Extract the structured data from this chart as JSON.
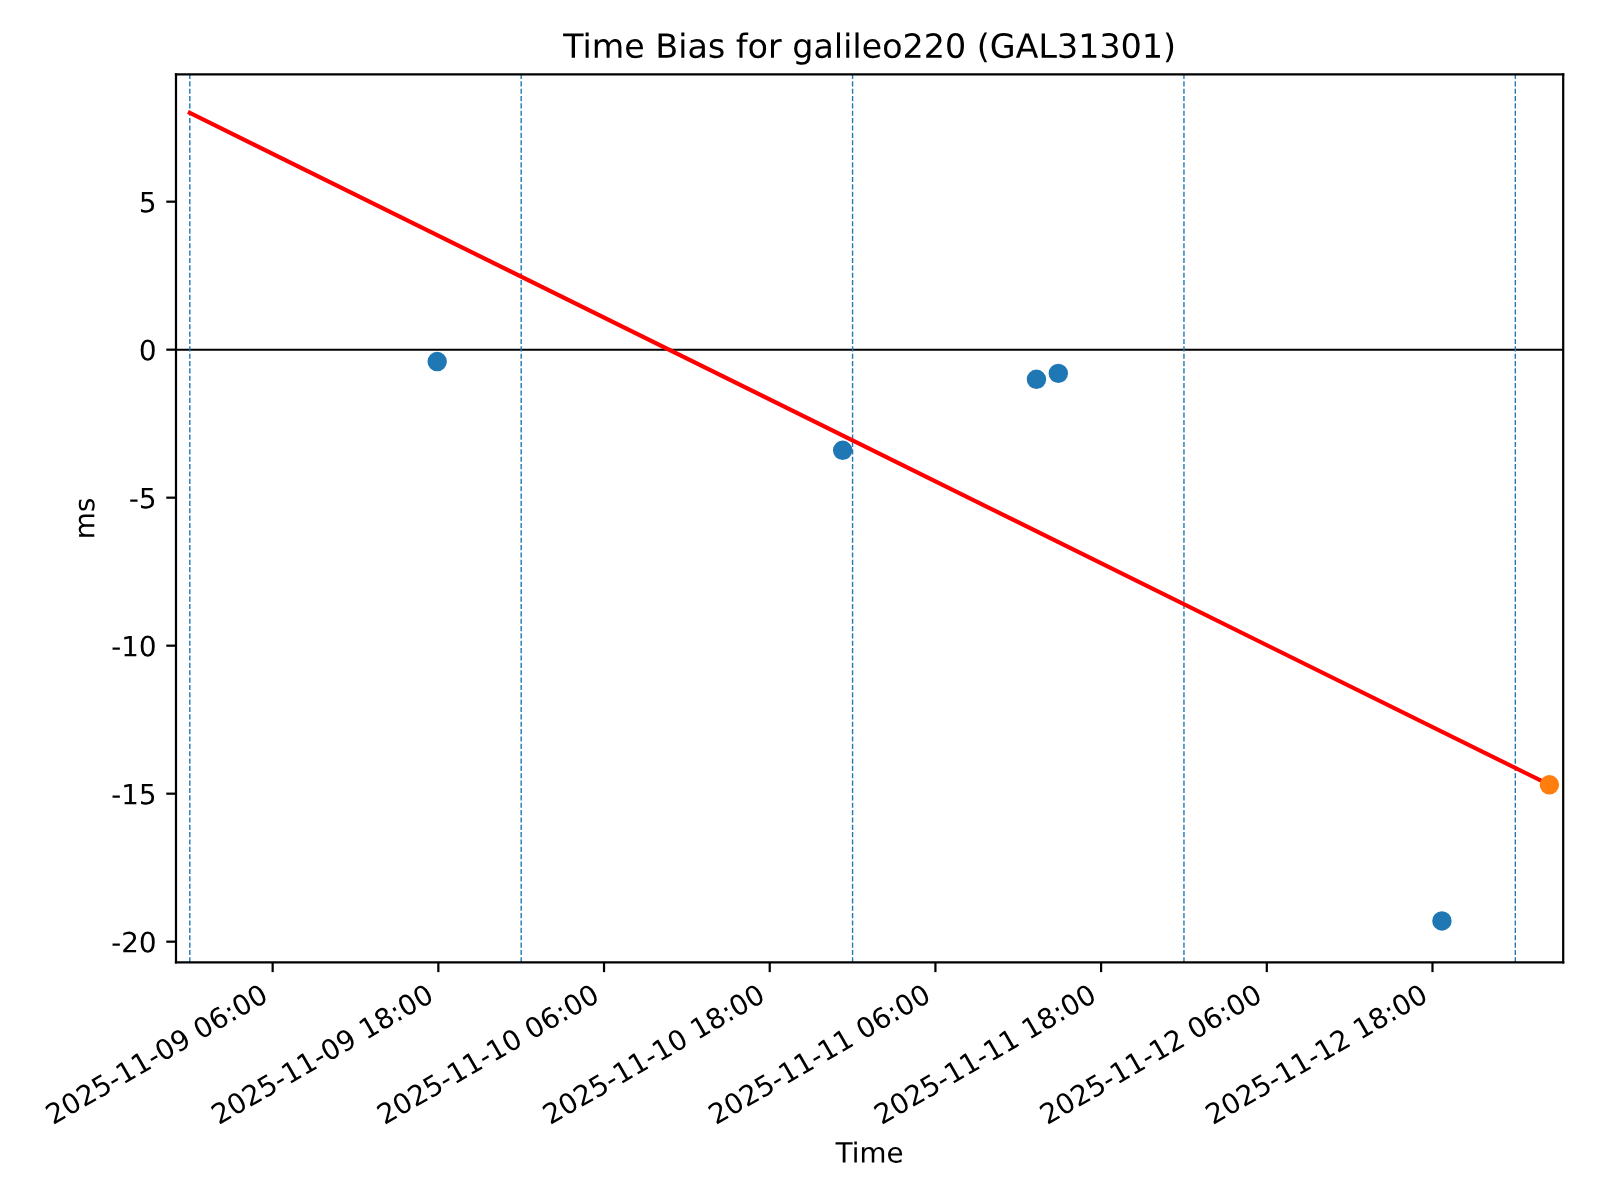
{
  "chart_data": {
    "type": "scatter",
    "title": "Time Bias for galileo220 (GAL31301)",
    "xlabel": "Time",
    "ylabel": "ms",
    "series": [
      {
        "color": "#1f77b4",
        "x": [
          "2025-11-09T17:55",
          "2025-11-10T23:17",
          "2025-11-11T13:19",
          "2025-11-11T14:54",
          "2025-11-12T18:41"
        ],
        "values": [
          -0.4,
          -3.4,
          -1.0,
          -0.8,
          -19.3
        ]
      },
      {
        "type": "line",
        "color": "#ff0000",
        "x": [
          "2025-11-09T00:00",
          "2025-11-13T02:28"
        ],
        "values": [
          8.0,
          -14.7
        ]
      },
      {
        "color": "#ff7f0e",
        "x": [
          "2025-11-13T02:28"
        ],
        "values": [
          -14.7
        ]
      }
    ],
    "xlim": [
      "2025-11-08T23:00",
      "2025-11-13T03:28"
    ],
    "xticks": [
      {
        "value": "2025-11-09T06:00",
        "label": "2025-11-09 06:00"
      },
      {
        "value": "2025-11-09T18:00",
        "label": "2025-11-09 18:00"
      },
      {
        "value": "2025-11-10T06:00",
        "label": "2025-11-10 06:00"
      },
      {
        "value": "2025-11-10T18:00",
        "label": "2025-11-10 18:00"
      },
      {
        "value": "2025-11-11T06:00",
        "label": "2025-11-11 06:00"
      },
      {
        "value": "2025-11-11T18:00",
        "label": "2025-11-11 18:00"
      },
      {
        "value": "2025-11-12T06:00",
        "label": "2025-11-12 06:00"
      },
      {
        "value": "2025-11-12T18:00",
        "label": "2025-11-12 18:00"
      }
    ],
    "ylim": [
      -20.7,
      9.3
    ],
    "yticks": [
      -20,
      -15,
      -10,
      -5,
      0,
      5
    ],
    "ref_lines": [
      {
        "axis": "y",
        "value": 0,
        "color": "#000000",
        "line_style": "solid"
      },
      {
        "axis": "x",
        "value": "2025-11-09T00:00",
        "color": "#1f77b4",
        "line_style": "dashed"
      },
      {
        "axis": "x",
        "value": "2025-11-10T00:00",
        "color": "#1f77b4",
        "line_style": "dashed"
      },
      {
        "axis": "x",
        "value": "2025-11-11T00:00",
        "color": "#1f77b4",
        "line_style": "dashed"
      },
      {
        "axis": "x",
        "value": "2025-11-12T00:00",
        "color": "#1f77b4",
        "line_style": "dashed"
      },
      {
        "axis": "x",
        "value": "2025-11-13T00:00",
        "color": "#1f77b4",
        "line_style": "dashed"
      }
    ],
    "grid": false,
    "legend": false
  }
}
